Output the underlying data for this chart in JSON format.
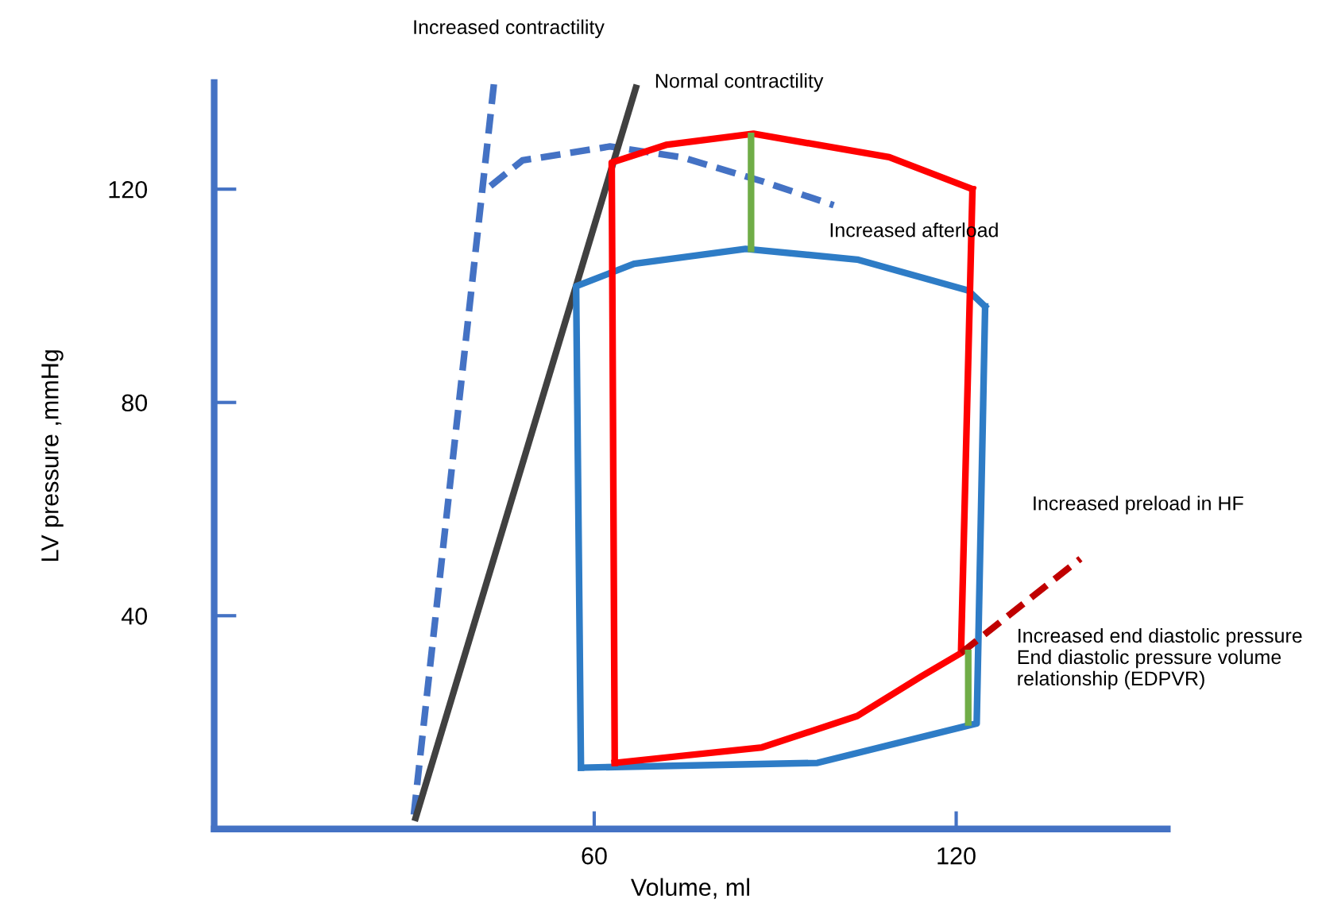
{
  "chart_data": {
    "type": "line",
    "xlabel": "Volume, ml",
    "ylabel": "LV pressure ,mmHg",
    "xlim": [
      -3,
      155
    ],
    "xticks": [
      60,
      120
    ],
    "ylim": [
      0,
      140
    ],
    "yticks": [
      40,
      80,
      120
    ],
    "grid": false,
    "legend": false,
    "series": [
      {
        "color": "#4472c4",
        "line_style": "dashed",
        "x": [
          30.1,
          43.4
        ],
        "values": [
          2.7,
          140
        ]
      },
      {
        "color": "#4472c4",
        "line_style": "dashed",
        "x": [
          42.8,
          48.1,
          62.6,
          74.5,
          87.8,
          99.7
        ],
        "values": [
          120.6,
          125.4,
          128,
          126,
          121.5,
          117
        ]
      },
      {
        "color": "#404040",
        "line_style": "solid",
        "x": [
          30.4,
          66.9
        ],
        "values": [
          2.1,
          139
        ]
      },
      {
        "color": "#2e7cc6",
        "line_style": "solid",
        "x": [
          57.8,
          97,
          123.4,
          124.8
        ],
        "values": [
          11.5,
          12.4,
          19.8,
          98
        ]
      },
      {
        "color": "#2e7cc6",
        "line_style": "solid",
        "x": [
          124.8,
          122,
          103.6,
          85.1,
          66.6,
          57.0,
          57.8
        ],
        "values": [
          98,
          101,
          106.8,
          108.8,
          106,
          101.8,
          11.5
        ]
      },
      {
        "color": "#ff0000",
        "line_style": "solid",
        "x": [
          63.4,
          87.8,
          103.6,
          114.2,
          120.8,
          122.7
        ],
        "values": [
          12.4,
          15.3,
          21.2,
          28.6,
          33,
          120
        ]
      },
      {
        "color": "#ff0000",
        "line_style": "solid",
        "x": [
          122.7,
          108.9,
          86.4,
          71.9,
          62.9,
          63.4
        ],
        "values": [
          120,
          126,
          130.4,
          128.3,
          125,
          12.4
        ]
      },
      {
        "color": "#c00000",
        "line_style": "dashed",
        "x": [
          120.8,
          140.6
        ],
        "values": [
          33,
          50.7
        ]
      },
      {
        "color": "#70ad47",
        "line_style": "solid",
        "x": [
          86,
          86
        ],
        "values": [
          108.8,
          130
        ]
      },
      {
        "color": "#70ad47",
        "line_style": "solid",
        "x": [
          122,
          122
        ],
        "values": [
          20,
          33
        ]
      }
    ],
    "annotations": [
      "Increased contractility",
      "Normal contractility",
      "Increased afterload",
      "Increased preload in HF",
      "Increased end diastolic pressure\nEnd diastolic pressure volume\nrelationship (EDPVR)"
    ]
  }
}
